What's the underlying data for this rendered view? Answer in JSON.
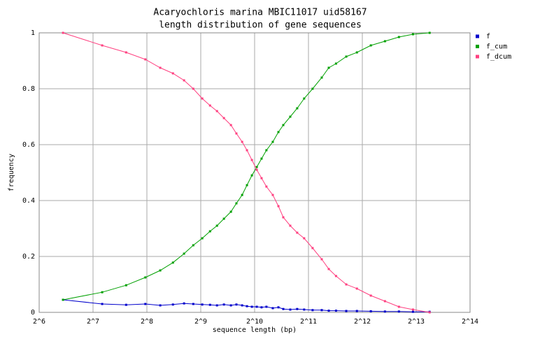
{
  "chart_data": {
    "type": "line",
    "title": "Acaryochloris marina MBIC11017 uid58167",
    "subtitle": "length distribution of gene sequences",
    "x_label": "sequence length (bp)",
    "y_label": "frequency",
    "x": [
      87,
      144,
      196,
      251,
      304,
      358,
      413,
      465,
      522,
      577,
      631,
      690,
      755,
      810,
      872,
      928,
      989,
      1053,
      1120,
      1192,
      1294,
      1391,
      1481,
      1620,
      1771,
      1937,
      2160,
      2430,
      2660,
      2920,
      3330,
      3820,
      4570,
      5480,
      6560,
      7860,
      9740
    ],
    "series": [
      {
        "name": "f",
        "color": "#0000cc",
        "values": [
          0.045,
          0.03,
          0.027,
          0.03,
          0.025,
          0.028,
          0.032,
          0.03,
          0.028,
          0.027,
          0.025,
          0.028,
          0.025,
          0.028,
          0.025,
          0.022,
          0.02,
          0.02,
          0.018,
          0.02,
          0.015,
          0.018,
          0.012,
          0.01,
          0.012,
          0.01,
          0.008,
          0.008,
          0.006,
          0.006,
          0.005,
          0.005,
          0.004,
          0.003,
          0.003,
          0.002,
          0.002
        ]
      },
      {
        "name": "f_cum",
        "color": "#00a000",
        "values": [
          0.045,
          0.072,
          0.097,
          0.125,
          0.15,
          0.178,
          0.21,
          0.24,
          0.265,
          0.29,
          0.31,
          0.335,
          0.36,
          0.39,
          0.42,
          0.455,
          0.49,
          0.52,
          0.55,
          0.58,
          0.61,
          0.645,
          0.67,
          0.7,
          0.73,
          0.765,
          0.8,
          0.84,
          0.875,
          0.89,
          0.915,
          0.93,
          0.955,
          0.97,
          0.985,
          0.995,
          1.0
        ]
      },
      {
        "name": "f_dcum",
        "color": "#ff4080",
        "values": [
          1.0,
          0.955,
          0.93,
          0.905,
          0.875,
          0.855,
          0.83,
          0.8,
          0.765,
          0.74,
          0.72,
          0.695,
          0.67,
          0.64,
          0.61,
          0.58,
          0.545,
          0.51,
          0.48,
          0.45,
          0.42,
          0.38,
          0.34,
          0.31,
          0.285,
          0.265,
          0.23,
          0.19,
          0.155,
          0.13,
          0.1,
          0.085,
          0.06,
          0.04,
          0.02,
          0.01,
          0.0
        ]
      }
    ],
    "xscale": "log2",
    "xlim": [
      64,
      16384
    ],
    "xticks": [
      {
        "value": 64,
        "label": "2^6"
      },
      {
        "value": 128,
        "label": "2^7"
      },
      {
        "value": 256,
        "label": "2^8"
      },
      {
        "value": 512,
        "label": "2^9"
      },
      {
        "value": 1024,
        "label": "2^10"
      },
      {
        "value": 2048,
        "label": "2^11"
      },
      {
        "value": 4096,
        "label": "2^12"
      },
      {
        "value": 8192,
        "label": "2^13"
      },
      {
        "value": 16384,
        "label": "2^14"
      }
    ],
    "ylim": [
      0,
      1
    ],
    "yticks": [
      0,
      0.2,
      0.4,
      0.6,
      0.8,
      1
    ],
    "grid": true,
    "legend": "right"
  }
}
